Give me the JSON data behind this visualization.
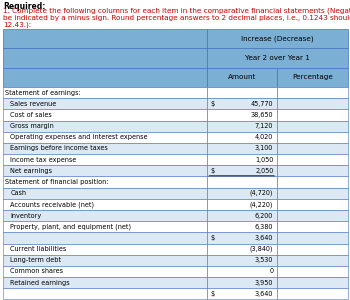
{
  "title_required": "Required:",
  "header1": "Increase (Decrease)",
  "header2": "Year 2 over Year 1",
  "col_amount": "Amount",
  "col_pct": "Percentage",
  "header_bg": "#7bafd4",
  "row_bg_light": "#dce9f5",
  "row_bg_white": "#ffffff",
  "border_color": "#4472c4",
  "text_color_red": "#cc0000",
  "body_lines": [
    "1. Complete the following columns for each item in the comparative financial statements (Negative answers shoul",
    "be indicated by a minus sign. Round percentage answers to 2 decimal places, i.e., 0.1243 should be entered as",
    "12.43.):"
  ],
  "rows": [
    {
      "label": "Statement of earnings:",
      "indent": false,
      "amount": "",
      "dollar": false,
      "is_section": true,
      "thick_bottom": false
    },
    {
      "label": "Sales revenue",
      "indent": true,
      "amount": "45,770",
      "dollar": true,
      "is_section": false,
      "thick_bottom": false
    },
    {
      "label": "Cost of sales",
      "indent": true,
      "amount": "38,650",
      "dollar": false,
      "is_section": false,
      "thick_bottom": false
    },
    {
      "label": "Gross margin",
      "indent": true,
      "amount": "7,120",
      "dollar": false,
      "is_section": false,
      "thick_bottom": false
    },
    {
      "label": "Operating expenses and interest expense",
      "indent": true,
      "amount": "4,020",
      "dollar": false,
      "is_section": false,
      "thick_bottom": false
    },
    {
      "label": "Earnings before income taxes",
      "indent": true,
      "amount": "3,100",
      "dollar": false,
      "is_section": false,
      "thick_bottom": false
    },
    {
      "label": "Income tax expense",
      "indent": true,
      "amount": "1,050",
      "dollar": false,
      "is_section": false,
      "thick_bottom": false
    },
    {
      "label": "Net earnings",
      "indent": true,
      "amount": "2,050",
      "dollar": true,
      "is_section": false,
      "thick_bottom": true
    },
    {
      "label": "Statement of financial position:",
      "indent": false,
      "amount": "",
      "dollar": false,
      "is_section": true,
      "thick_bottom": false
    },
    {
      "label": "Cash",
      "indent": true,
      "amount": "(4,720)",
      "dollar": false,
      "is_section": false,
      "thick_bottom": false
    },
    {
      "label": "Accounts receivable (net)",
      "indent": true,
      "amount": "(4,220)",
      "dollar": false,
      "is_section": false,
      "thick_bottom": false
    },
    {
      "label": "Inventory",
      "indent": true,
      "amount": "6,200",
      "dollar": false,
      "is_section": false,
      "thick_bottom": false
    },
    {
      "label": "Property, plant, and equipment (net)",
      "indent": true,
      "amount": "6,380",
      "dollar": false,
      "is_section": false,
      "thick_bottom": false
    },
    {
      "label": "",
      "indent": false,
      "amount": "3,640",
      "dollar": true,
      "is_section": false,
      "thick_bottom": false
    },
    {
      "label": "Current liabilities",
      "indent": true,
      "amount": "(3,840)",
      "dollar": false,
      "is_section": false,
      "thick_bottom": false
    },
    {
      "label": "Long-term debt",
      "indent": true,
      "amount": "3,530",
      "dollar": false,
      "is_section": false,
      "thick_bottom": false
    },
    {
      "label": "Common shares",
      "indent": true,
      "amount": "0",
      "dollar": false,
      "is_section": false,
      "thick_bottom": false
    },
    {
      "label": "Retained earnings",
      "indent": true,
      "amount": "3,950",
      "dollar": false,
      "is_section": false,
      "thick_bottom": false
    },
    {
      "label": "",
      "indent": false,
      "amount": "3,640",
      "dollar": true,
      "is_section": false,
      "thick_bottom": false
    }
  ],
  "row_colors": [
    "#ffffff",
    "#dce9f5",
    "#ffffff",
    "#dce9f5",
    "#ffffff",
    "#dce9f5",
    "#ffffff",
    "#dce9f5",
    "#ffffff",
    "#dce9f5",
    "#ffffff",
    "#dce9f5",
    "#ffffff",
    "#dce9f5",
    "#ffffff",
    "#dce9f5",
    "#ffffff",
    "#dce9f5",
    "#ffffff"
  ]
}
